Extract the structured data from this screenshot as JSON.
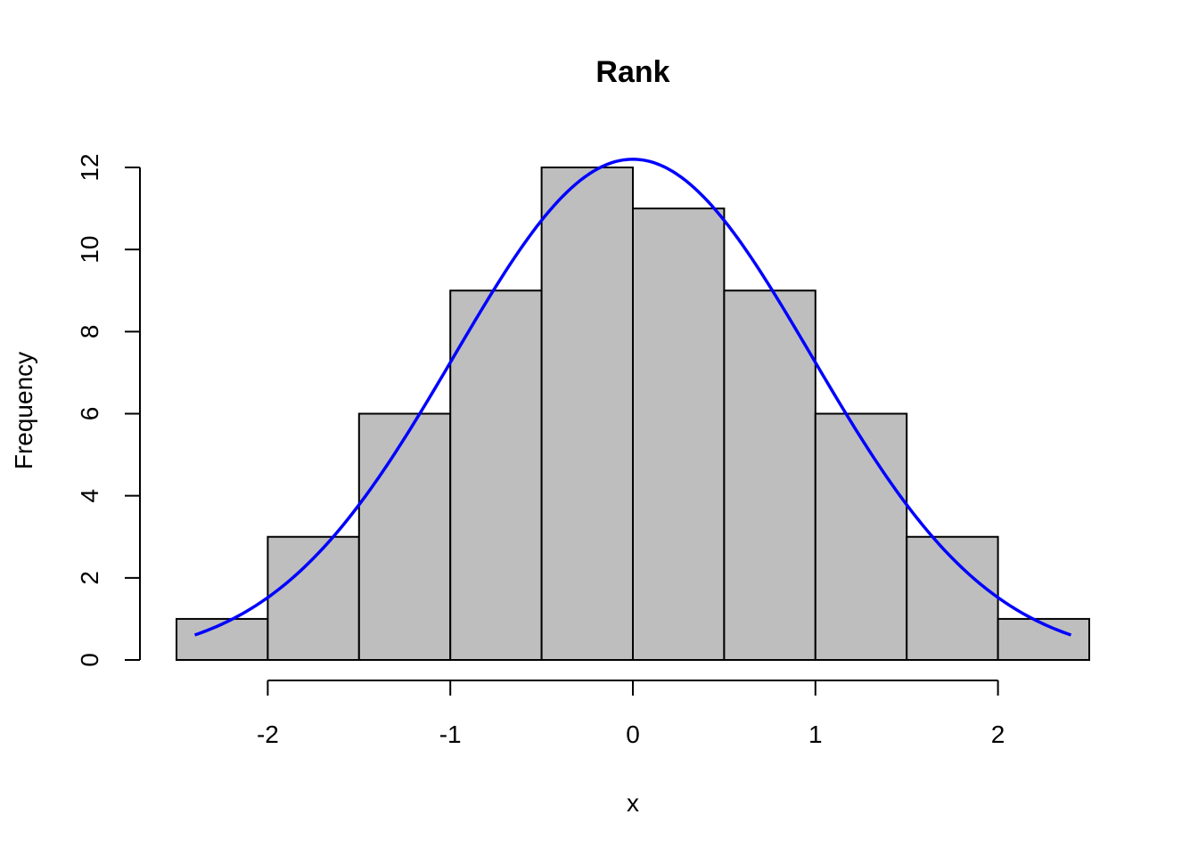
{
  "chart_data": {
    "type": "bar",
    "title": "Rank",
    "xlabel": "x",
    "ylabel": "Frequency",
    "bins": [
      {
        "start": -2.5,
        "end": -2.0,
        "count": 1
      },
      {
        "start": -2.0,
        "end": -1.5,
        "count": 3
      },
      {
        "start": -1.5,
        "end": -1.0,
        "count": 6
      },
      {
        "start": -1.0,
        "end": -0.5,
        "count": 9
      },
      {
        "start": -0.5,
        "end": 0.0,
        "count": 12
      },
      {
        "start": 0.0,
        "end": 0.5,
        "count": 11
      },
      {
        "start": 0.5,
        "end": 1.0,
        "count": 9
      },
      {
        "start": 1.0,
        "end": 1.5,
        "count": 6
      },
      {
        "start": 1.5,
        "end": 2.0,
        "count": 3
      },
      {
        "start": 2.0,
        "end": 2.5,
        "count": 1
      }
    ],
    "xticks": [
      -2,
      -1,
      0,
      1,
      2
    ],
    "yticks": [
      0,
      2,
      4,
      6,
      8,
      10,
      12
    ],
    "xlim": [
      -2.5,
      2.5
    ],
    "ylim": [
      0,
      12
    ],
    "overlay_curve": {
      "kind": "normal density scaled to counts",
      "mean": 0,
      "sd": 0.98,
      "peak": 12.2,
      "x_range": [
        -2.4,
        2.4
      ],
      "color": "#0000ff"
    },
    "bar_color": "#bebebe",
    "grid": false,
    "legend": "none"
  }
}
